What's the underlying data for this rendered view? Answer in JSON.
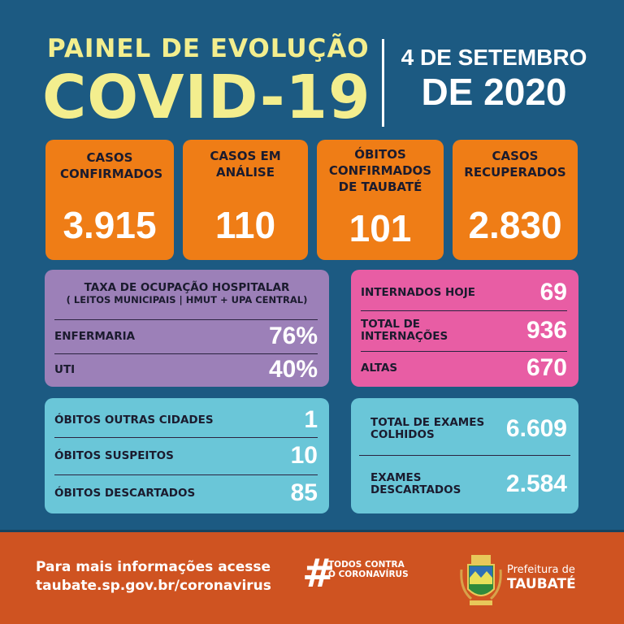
{
  "header": {
    "line1": "PAINEL DE EVOLUÇÃO",
    "line2": "COVID-19",
    "date_line1": "4 DE SETEMBRO",
    "date_line2": "DE 2020"
  },
  "cards": [
    {
      "label": "CASOS CONFIRMADOS",
      "value": "3.915"
    },
    {
      "label": "CASOS EM ANÁLISE",
      "value": "110"
    },
    {
      "label": "ÓBITOS CONFIRMADOS DE TAUBATÉ",
      "value": "101"
    },
    {
      "label": "CASOS RECUPERADOS",
      "value": "2.830"
    }
  ],
  "occupancy": {
    "title": "TAXA DE OCUPAÇÃO HOSPITALAR",
    "subtitle": "( LEITOS MUNICIPAIS | HMUT + UPA CENTRAL)",
    "rows": [
      {
        "label": "ENFERMARIA",
        "value": "76%"
      },
      {
        "label": "UTI",
        "value": "40%"
      }
    ]
  },
  "hospital": {
    "rows": [
      {
        "label": "INTERNADOS HOJE",
        "value": "69"
      },
      {
        "label": "TOTAL DE INTERNAÇÕES",
        "value": "936"
      },
      {
        "label": "ALTAS",
        "value": "670"
      }
    ]
  },
  "deaths": {
    "rows": [
      {
        "label": "ÓBITOS OUTRAS CIDADES",
        "value": "1"
      },
      {
        "label": "ÓBITOS SUSPEITOS",
        "value": "10"
      },
      {
        "label": "ÓBITOS DESCARTADOS",
        "value": "85"
      }
    ]
  },
  "exams": {
    "rows": [
      {
        "label": "TOTAL DE EXAMES COLHIDOS",
        "value": "6.609"
      },
      {
        "label": "EXAMES DESCARTADOS",
        "value": "2.584"
      }
    ]
  },
  "footer": {
    "info_line1": "Para mais informações acesse",
    "info_line2": "taubate.sp.gov.br/coronavirus",
    "hashtag": "#",
    "campaign": "TODOS CONTRA O CORONAVÍRUS",
    "org_line1": "Prefeitura de",
    "org_line2": "TAUBATÉ"
  },
  "colors": {
    "background": "#1c5a82",
    "title": "#f3ee8e",
    "orange": "#ef7d16",
    "purple": "#9c80b8",
    "pink": "#e85da4",
    "cyan": "#6ac6d8",
    "footer": "#cf5321"
  }
}
